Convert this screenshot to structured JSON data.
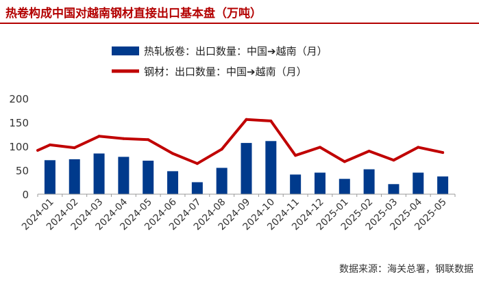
{
  "title": "热卷构成中国对越南钢材直接出口基本盘（万吨）",
  "source": "数据来源：海关总署，钢联数据",
  "colors": {
    "title": "#b30000",
    "bar": "#003a8c",
    "line": "#c00000"
  },
  "chart_data": {
    "type": "bar",
    "categories": [
      "2024-01",
      "2024-02",
      "2024-03",
      "2024-04",
      "2024-05",
      "2024-06",
      "2024-07",
      "2024-08",
      "2024-09",
      "2024-10",
      "2024-11",
      "2024-12",
      "2025-01",
      "2025-02",
      "2025-03",
      "2025-04",
      "2025-05"
    ],
    "series": [
      {
        "name": "热轧板卷：出口数量：中国➔越南（月）",
        "type": "bar",
        "values": [
          71,
          73,
          85,
          78,
          70,
          48,
          25,
          55,
          107,
          111,
          41,
          45,
          32,
          52,
          21,
          45,
          37
        ]
      },
      {
        "name": "钢材：出口数量：中国➔越南（月）",
        "type": "line",
        "values": [
          103,
          97,
          121,
          116,
          114,
          85,
          64,
          94,
          156,
          153,
          81,
          98,
          68,
          90,
          71,
          98,
          87
        ]
      }
    ],
    "yticks": [
      0,
      50,
      100,
      150,
      200
    ],
    "ylim": [
      0,
      200
    ],
    "grid": false,
    "legend_position": "top"
  }
}
